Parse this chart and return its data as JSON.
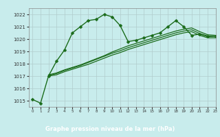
{
  "title": "Graphe pression niveau de la mer (hPa)",
  "bg_color": "#c8ecec",
  "grid_color": "#b0cccc",
  "line_color": "#1a6b1a",
  "xlabel_bg": "#2d8b2d",
  "xlabel_color": "#ffffff",
  "xlim": [
    -0.5,
    23
  ],
  "ylim": [
    1014.5,
    1022.5
  ],
  "yticks": [
    1015,
    1016,
    1017,
    1018,
    1019,
    1020,
    1021,
    1022
  ],
  "xticks": [
    0,
    1,
    2,
    3,
    4,
    5,
    6,
    7,
    8,
    9,
    10,
    11,
    12,
    13,
    14,
    15,
    16,
    17,
    18,
    19,
    20,
    21,
    22,
    23
  ],
  "series": [
    {
      "x": [
        0,
        1,
        2,
        3,
        4,
        5,
        6,
        7,
        8,
        9,
        10,
        11,
        12,
        13,
        14,
        15,
        16,
        17,
        18,
        19,
        20,
        21,
        22,
        23
      ],
      "y": [
        1015.1,
        1014.8,
        1017.0,
        1018.2,
        1019.1,
        1020.5,
        1021.0,
        1021.5,
        1021.6,
        1022.0,
        1021.8,
        1021.1,
        1019.8,
        1019.9,
        1020.1,
        1020.3,
        1020.5,
        1021.0,
        1021.5,
        1021.0,
        1020.3,
        1020.4,
        1020.2,
        1020.2
      ],
      "marker": "D",
      "markersize": 2.5,
      "linewidth": 1.0
    },
    {
      "x": [
        2,
        3,
        4,
        5,
        6,
        7,
        8,
        9,
        10,
        11,
        12,
        13,
        14,
        15,
        16,
        17,
        18,
        19,
        20,
        21,
        22,
        23
      ],
      "y": [
        1017.05,
        1017.2,
        1017.45,
        1017.65,
        1017.85,
        1018.1,
        1018.35,
        1018.6,
        1018.85,
        1019.05,
        1019.3,
        1019.5,
        1019.7,
        1019.9,
        1020.1,
        1020.3,
        1020.5,
        1020.65,
        1020.75,
        1020.45,
        1020.25,
        1020.2
      ],
      "marker": null,
      "linewidth": 0.9
    },
    {
      "x": [
        2,
        3,
        4,
        5,
        6,
        7,
        8,
        9,
        10,
        11,
        12,
        13,
        14,
        15,
        16,
        17,
        18,
        19,
        20,
        21,
        22,
        23
      ],
      "y": [
        1017.1,
        1017.25,
        1017.5,
        1017.7,
        1017.9,
        1018.15,
        1018.4,
        1018.65,
        1018.95,
        1019.2,
        1019.45,
        1019.65,
        1019.85,
        1020.05,
        1020.25,
        1020.45,
        1020.65,
        1020.8,
        1020.9,
        1020.6,
        1020.35,
        1020.3
      ],
      "marker": null,
      "linewidth": 0.9
    },
    {
      "x": [
        2,
        3,
        4,
        5,
        6,
        7,
        8,
        9,
        10,
        11,
        12,
        13,
        14,
        15,
        16,
        17,
        18,
        19,
        20,
        21,
        22,
        23
      ],
      "y": [
        1017.0,
        1017.1,
        1017.35,
        1017.55,
        1017.75,
        1017.95,
        1018.2,
        1018.45,
        1018.7,
        1018.9,
        1019.15,
        1019.35,
        1019.55,
        1019.75,
        1019.95,
        1020.15,
        1020.35,
        1020.5,
        1020.6,
        1020.3,
        1020.1,
        1020.1
      ],
      "marker": null,
      "linewidth": 0.9
    }
  ]
}
